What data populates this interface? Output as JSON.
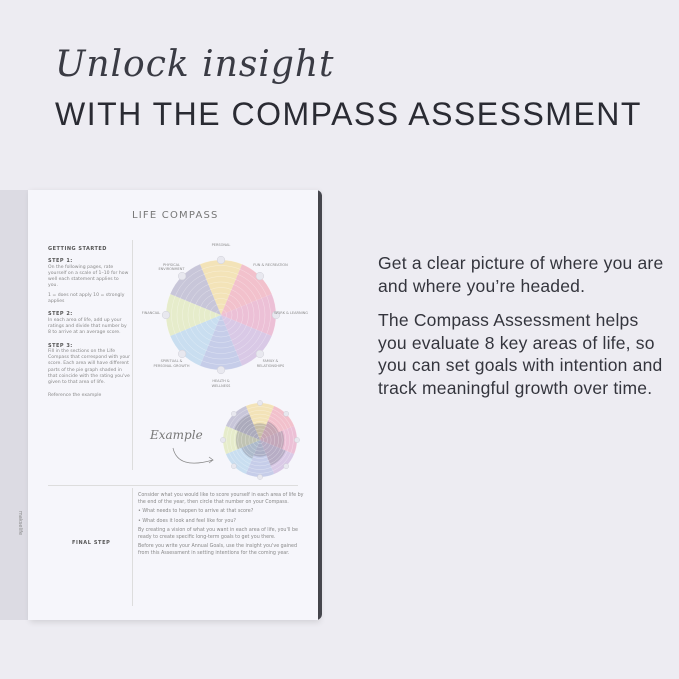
{
  "header": {
    "script_title": "Unlock insight",
    "title": "WITH THE COMPASS ASSESSMENT"
  },
  "side_text": {
    "p1": "Get a clear picture of where you are and where you’re headed.",
    "p2": "The Compass Assessment helps you evaluate 8 key areas of life, so you can set goals with intention and track meaningful growth over time."
  },
  "notebook": {
    "page_title": "LIFE COMPASS",
    "getting_started": "GETTING STARTED",
    "step1_title": "STEP 1:",
    "step1": "On the following pages, rate yourself on a scale of 1–10 for how well each statement applies to you.",
    "scale": "1 = does not apply 10 = strongly applies",
    "step2_title": "STEP 2:",
    "step2": "In each area of life, add up your ratings and divide that number by 8 to arrive at an average score.",
    "step3_title": "STEP 3:",
    "step3": "Fill in the sections on the Life Compass that correspond with your score. Each area will have different parts of the pie graph shaded in that coincide with the rating you've given to that area of life.",
    "reference": "Reference the example",
    "areas": [
      "PERSONAL",
      "FUN & RECREATION",
      "WORK & LEARNING",
      "FAMILY & RELATIONSHIPS",
      "HEALTH & WELLNESS",
      "SPIRITUAL & PERSONAL GROWTH",
      "FINANCIAL",
      "PHYSICAL ENVIRONMENT"
    ],
    "area_colors": [
      "#f3e3b8",
      "#f2c1cc",
      "#ecc0d6",
      "#d9c9e6",
      "#c6cde9",
      "#c9def0",
      "#e6eccb",
      "#c8c6d9"
    ],
    "example_label": "Example",
    "final_step": "FINAL STEP",
    "final_p1": "Consider what you would like to score yourself in each area of life by the end of the year, then circle that number on your Compass.",
    "bullet1": "What needs to happen to arrive at that score?",
    "bullet2": "What does it look and feel like for you?",
    "final_p2": "By creating a vision of what you want in each area of life, you'll be ready to create specific long-term goals to get you there.",
    "final_p3": "Before you write your Annual Goals, use the insight you've gained from this Assessment in setting intentions for the coming year.",
    "spine_text": "makselife"
  }
}
